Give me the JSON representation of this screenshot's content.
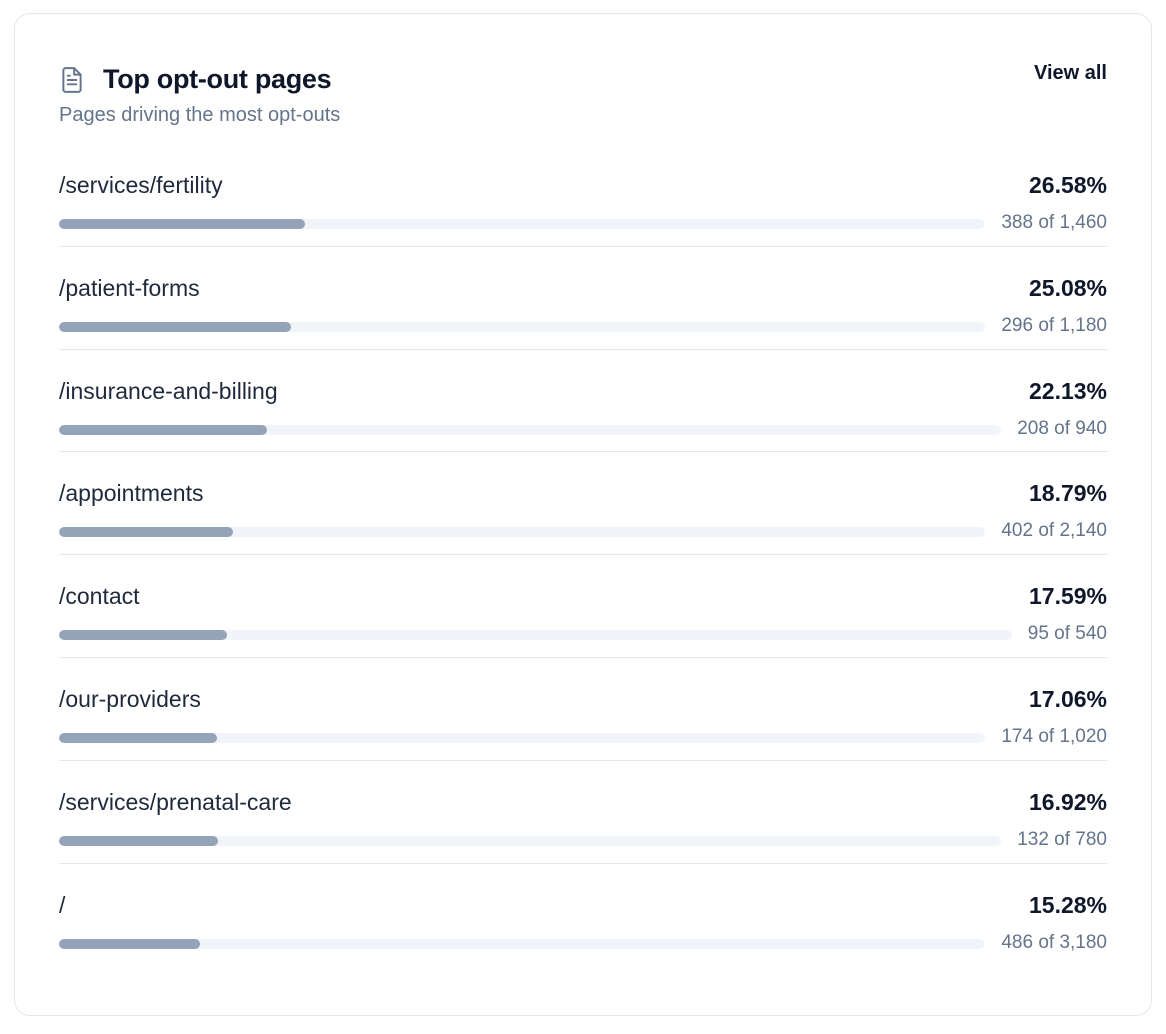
{
  "card": {
    "title": "Top opt-out pages",
    "subtitle": "Pages driving the most opt-outs",
    "view_all_label": "View all",
    "icon": "document-icon"
  },
  "colors": {
    "bar_fill": "#94a3b8",
    "bar_track": "#f1f5f9",
    "title": "#0f172a",
    "muted": "#64748b"
  },
  "pages": [
    {
      "path": "/services/fertility",
      "percent": "26.58%",
      "count": "388 of 1,460",
      "fraction": 0.2658
    },
    {
      "path": "/patient-forms",
      "percent": "25.08%",
      "count": "296 of 1,180",
      "fraction": 0.2508
    },
    {
      "path": "/insurance-and-billing",
      "percent": "22.13%",
      "count": "208 of 940",
      "fraction": 0.2213
    },
    {
      "path": "/appointments",
      "percent": "18.79%",
      "count": "402 of 2,140",
      "fraction": 0.1879
    },
    {
      "path": "/contact",
      "percent": "17.59%",
      "count": "95 of 540",
      "fraction": 0.1759
    },
    {
      "path": "/our-providers",
      "percent": "17.06%",
      "count": "174 of 1,020",
      "fraction": 0.1706
    },
    {
      "path": "/services/prenatal-care",
      "percent": "16.92%",
      "count": "132 of 780",
      "fraction": 0.1692
    },
    {
      "path": "/",
      "percent": "15.28%",
      "count": "486 of 3,180",
      "fraction": 0.1528
    }
  ]
}
